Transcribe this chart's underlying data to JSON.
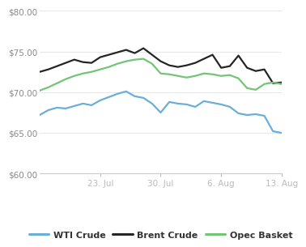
{
  "ylim": [
    60.0,
    80.0
  ],
  "yticks": [
    60.0,
    65.0,
    70.0,
    75.0,
    80.0
  ],
  "xtick_labels": [
    "23. Jul",
    "30. Jul",
    "6. Aug",
    "13. Aug"
  ],
  "xtick_positions": [
    7,
    14,
    21,
    28
  ],
  "background_color": "#ffffff",
  "grid_color": "#e8e8e8",
  "wti_color": "#6baed6",
  "brent_color": "#252525",
  "opec_color": "#74c476",
  "wti_label": "WTI Crude",
  "brent_label": "Brent Crude",
  "opec_label": "Opec Basket",
  "x": [
    0,
    1,
    2,
    3,
    4,
    5,
    6,
    7,
    8,
    9,
    10,
    11,
    12,
    13,
    14,
    15,
    16,
    17,
    18,
    19,
    20,
    21,
    22,
    23,
    24,
    25,
    26,
    27,
    28
  ],
  "wti": [
    67.2,
    67.8,
    68.1,
    68.0,
    68.3,
    68.6,
    68.4,
    69.0,
    69.4,
    69.8,
    70.1,
    69.5,
    69.3,
    68.6,
    67.5,
    68.8,
    68.6,
    68.5,
    68.2,
    68.9,
    68.7,
    68.5,
    68.2,
    67.4,
    67.2,
    67.3,
    67.1,
    65.2,
    65.0
  ],
  "brent": [
    72.5,
    72.8,
    73.2,
    73.6,
    74.0,
    73.7,
    73.6,
    74.3,
    74.6,
    74.9,
    75.2,
    74.8,
    75.4,
    74.6,
    73.8,
    73.3,
    73.1,
    73.3,
    73.6,
    74.1,
    74.6,
    73.0,
    73.2,
    74.5,
    73.0,
    72.6,
    72.8,
    71.1,
    71.2
  ],
  "opec": [
    70.2,
    70.6,
    71.1,
    71.6,
    72.0,
    72.3,
    72.5,
    72.8,
    73.1,
    73.5,
    73.8,
    74.0,
    74.1,
    73.5,
    72.3,
    72.2,
    72.0,
    71.8,
    72.0,
    72.3,
    72.2,
    72.0,
    72.1,
    71.7,
    70.5,
    70.3,
    71.0,
    71.2,
    71.0
  ],
  "linewidth": 1.6,
  "tick_label_color": "#888888",
  "tick_label_size": 7.5
}
